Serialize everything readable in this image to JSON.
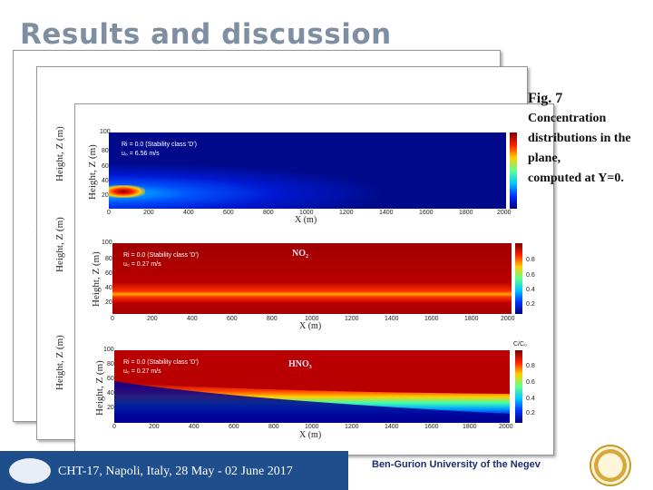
{
  "slide": {
    "title": "Results and discussion",
    "caption_lines": [
      "Fig. 7",
      "Concentration",
      "distributions in the",
      "plane,",
      "computed at Y=0."
    ],
    "footer": "CHT-17, Napoli, Italy, 28 May - 02 June 2017",
    "university": "Ben-Gurion University of the Negev"
  },
  "figure": {
    "ylabel": "Height, Z (m)",
    "xlabel": "X (m)",
    "cbar_label": "C/C₀",
    "top_panel": {
      "legend1": "Ri = 0.0 (Stability class 'D')",
      "legend2": "u₀ = 6.56 m/s",
      "xticks": [
        "0",
        "200",
        "400",
        "600",
        "800",
        "1000",
        "1200",
        "1400",
        "1600",
        "1800",
        "2000"
      ],
      "yticks": [
        "100",
        "80",
        "60",
        "40",
        "20"
      ]
    },
    "mid_panel": {
      "species": "NO₂",
      "legend1": "Ri = 0.0 (Stability class 'D')",
      "legend2": "u₀ = 0.27 m/s",
      "xticks": [
        "0",
        "200",
        "400",
        "600",
        "800",
        "1000",
        "1200",
        "1400",
        "1600",
        "1800",
        "2000"
      ],
      "yticks": [
        "100",
        "80",
        "60",
        "40",
        "20"
      ]
    },
    "bottom_panel": {
      "species": "HNO₃",
      "legend1": "Ri = 0.0 (Stability class 'D')",
      "legend2": "u₀ = 0.27 m/s",
      "xticks": [
        "0",
        "200",
        "400",
        "600",
        "800",
        "1000",
        "1200",
        "1400",
        "1600",
        "1800",
        "2000"
      ],
      "yticks": [
        "100",
        "80",
        "60",
        "40",
        "20"
      ],
      "cbar_ticks": [
        "0.8",
        "0.6",
        "0.4",
        "0.2"
      ]
    }
  }
}
